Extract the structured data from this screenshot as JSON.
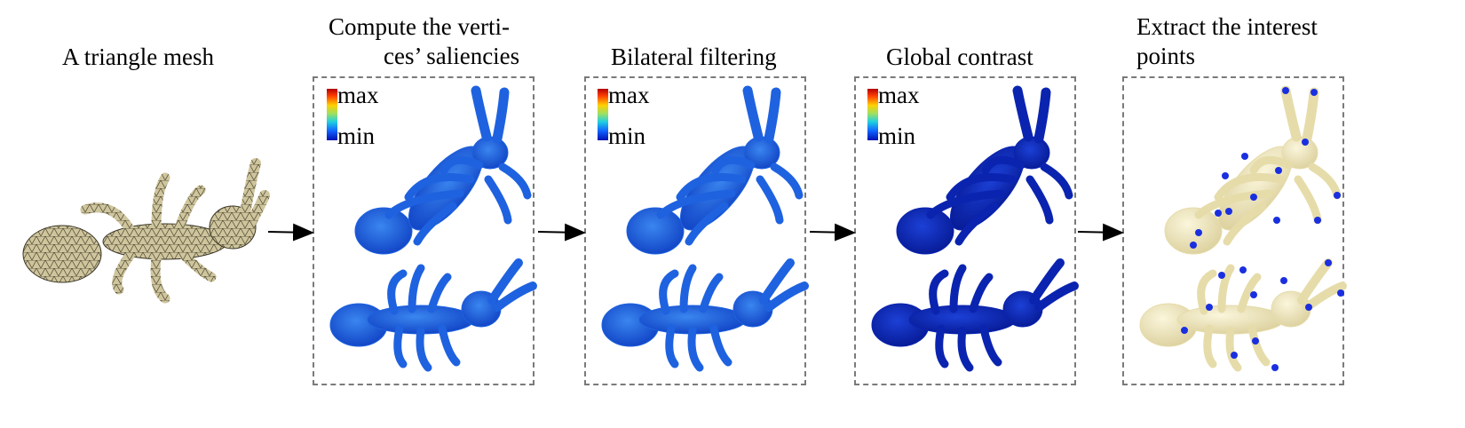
{
  "stages": [
    {
      "title": "A triangle mesh"
    },
    {
      "title_line1": "Compute the verti-",
      "title_line2": "ces’ saliencies"
    },
    {
      "title": "Bilateral filtering"
    },
    {
      "title": "Global contrast"
    },
    {
      "title_line1": "Extract the interest",
      "title_line2": " points"
    }
  ],
  "legend": {
    "max": "max",
    "min": "min"
  },
  "colors": {
    "mesh": "#cfc59d",
    "saliency_blue": "#1456d8",
    "contrast_blue": "#0a2bb8",
    "interest_body": "#efe6bd",
    "interest_point": "#1a2fe0",
    "arrow": "#000000",
    "panel_border": "#7a7a7a"
  }
}
